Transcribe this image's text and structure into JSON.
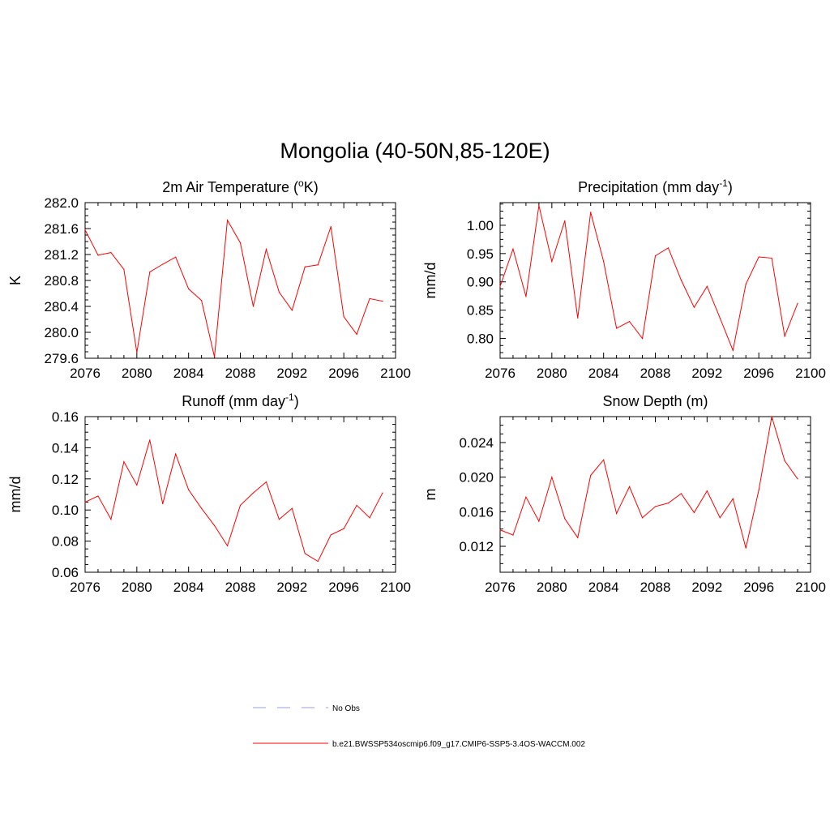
{
  "page_title": "Mongolia (40-50N,85-120E)",
  "chart_data": [
    {
      "type": "line",
      "title_parts": [
        {
          "t": "2m Air Temperature ("
        },
        {
          "t": "o",
          "sup": true
        },
        {
          "t": "K)"
        }
      ],
      "title_text": "2m Air Temperature (oK)",
      "ylabel": "K",
      "xlim": [
        2076,
        2100
      ],
      "ylim": [
        279.6,
        282.0
      ],
      "xticks": [
        2076,
        2080,
        2084,
        2088,
        2092,
        2096,
        2100
      ],
      "xtick_labels": [
        "2076",
        "2080",
        "2084",
        "2088",
        "2092",
        "2096",
        "2100"
      ],
      "yticks": [
        279.6,
        280.0,
        280.4,
        280.8,
        281.2,
        281.6,
        282.0
      ],
      "ytick_labels": [
        "279.6",
        "280.0",
        "280.4",
        "280.8",
        "281.2",
        "281.6",
        "282.0"
      ],
      "x": [
        2076,
        2077,
        2078,
        2079,
        2080,
        2081,
        2082,
        2083,
        2084,
        2085,
        2086,
        2087,
        2088,
        2089,
        2090,
        2091,
        2092,
        2093,
        2094,
        2095,
        2096,
        2097,
        2098,
        2099
      ],
      "series": [
        {
          "name": "b.e21.BWSSP534oscmip6.f09_g17.CMIP6-SSP5-3.4OS-WACCM.002",
          "values": [
            281.58,
            281.19,
            281.23,
            280.97,
            279.69,
            280.93,
            281.05,
            281.16,
            280.67,
            280.49,
            279.62,
            281.73,
            281.38,
            280.4,
            281.28,
            280.62,
            280.34,
            281.01,
            281.04,
            281.63,
            280.24,
            279.97,
            280.52,
            280.48
          ]
        }
      ]
    },
    {
      "type": "line",
      "title_parts": [
        {
          "t": "Precipitation (mm day"
        },
        {
          "t": "-1",
          "sup": true
        },
        {
          "t": ")"
        }
      ],
      "title_text": "Precipitation (mm day-1)",
      "ylabel": "mm/d",
      "xlim": [
        2076,
        2100
      ],
      "ylim": [
        0.765,
        1.04
      ],
      "xticks": [
        2076,
        2080,
        2084,
        2088,
        2092,
        2096,
        2100
      ],
      "xtick_labels": [
        "2076",
        "2080",
        "2084",
        "2088",
        "2092",
        "2096",
        "2100"
      ],
      "yticks": [
        0.8,
        0.85,
        0.9,
        0.95,
        1.0
      ],
      "ytick_labels": [
        "0.80",
        "0.85",
        "0.90",
        "0.95",
        "1.00"
      ],
      "x": [
        2076,
        2077,
        2078,
        2079,
        2080,
        2081,
        2082,
        2083,
        2084,
        2085,
        2086,
        2087,
        2088,
        2089,
        2090,
        2091,
        2092,
        2093,
        2094,
        2095,
        2096,
        2097,
        2098,
        2099
      ],
      "series": [
        {
          "name": "b.e21.BWSSP534oscmip6.f09_g17.CMIP6-SSP5-3.4OS-WACCM.002",
          "values": [
            0.892,
            0.958,
            0.874,
            1.035,
            0.936,
            1.008,
            0.836,
            1.023,
            0.936,
            0.818,
            0.83,
            0.8,
            0.946,
            0.96,
            0.903,
            0.855,
            0.892,
            0.836,
            0.779,
            0.896,
            0.944,
            0.942,
            0.804,
            0.862
          ]
        }
      ]
    },
    {
      "type": "line",
      "title_parts": [
        {
          "t": "Runoff (mm day"
        },
        {
          "t": "-1",
          "sup": true
        },
        {
          "t": ")"
        }
      ],
      "title_text": "Runoff (mm day-1)",
      "ylabel": "mm/d",
      "xlim": [
        2076,
        2100
      ],
      "ylim": [
        0.06,
        0.16
      ],
      "xticks": [
        2076,
        2080,
        2084,
        2088,
        2092,
        2096,
        2100
      ],
      "xtick_labels": [
        "2076",
        "2080",
        "2084",
        "2088",
        "2092",
        "2096",
        "2100"
      ],
      "yticks": [
        0.06,
        0.08,
        0.1,
        0.12,
        0.14,
        0.16
      ],
      "ytick_labels": [
        "0.06",
        "0.08",
        "0.10",
        "0.12",
        "0.14",
        "0.16"
      ],
      "x": [
        2076,
        2077,
        2078,
        2079,
        2080,
        2081,
        2082,
        2083,
        2084,
        2085,
        2086,
        2087,
        2088,
        2089,
        2090,
        2091,
        2092,
        2093,
        2094,
        2095,
        2096,
        2097,
        2098,
        2099
      ],
      "series": [
        {
          "name": "b.e21.BWSSP534oscmip6.f09_g17.CMIP6-SSP5-3.4OS-WACCM.002",
          "values": [
            0.105,
            0.109,
            0.094,
            0.131,
            0.116,
            0.145,
            0.104,
            0.136,
            0.113,
            0.101,
            0.09,
            0.077,
            0.103,
            0.111,
            0.118,
            0.094,
            0.101,
            0.072,
            0.067,
            0.084,
            0.088,
            0.103,
            0.095,
            0.111
          ]
        }
      ]
    },
    {
      "type": "line",
      "title_parts": [
        {
          "t": "Snow Depth (m)"
        }
      ],
      "title_text": "Snow Depth (m)",
      "ylabel": "m",
      "xlim": [
        2076,
        2100
      ],
      "ylim": [
        0.009,
        0.027
      ],
      "xticks": [
        2076,
        2080,
        2084,
        2088,
        2092,
        2096,
        2100
      ],
      "xtick_labels": [
        "2076",
        "2080",
        "2084",
        "2088",
        "2092",
        "2096",
        "2100"
      ],
      "yticks": [
        0.012,
        0.016,
        0.02,
        0.024
      ],
      "ytick_labels": [
        "0.012",
        "0.016",
        "0.020",
        "0.024"
      ],
      "x": [
        2076,
        2077,
        2078,
        2079,
        2080,
        2081,
        2082,
        2083,
        2084,
        2085,
        2086,
        2087,
        2088,
        2089,
        2090,
        2091,
        2092,
        2093,
        2094,
        2095,
        2096,
        2097,
        2098,
        2099
      ],
      "series": [
        {
          "name": "b.e21.BWSSP534oscmip6.f09_g17.CMIP6-SSP5-3.4OS-WACCM.002",
          "values": [
            0.0139,
            0.0133,
            0.0177,
            0.0149,
            0.02,
            0.0152,
            0.013,
            0.0202,
            0.022,
            0.0158,
            0.0189,
            0.0153,
            0.0166,
            0.017,
            0.0181,
            0.0159,
            0.0184,
            0.0153,
            0.0175,
            0.0118,
            0.0185,
            0.027,
            0.0219,
            0.0198
          ]
        }
      ]
    }
  ],
  "legend": {
    "items": [
      {
        "label": "No Obs",
        "color": "#aab0e6",
        "style": "dashed"
      },
      {
        "label": "b.e21.BWSSP534oscmip6.f09_g17.CMIP6-SSP5-3.4OS-WACCM.002",
        "color": "#ff0000",
        "style": "solid"
      }
    ]
  },
  "colors": {
    "series": "#ff0000",
    "obs": "#aab0e6",
    "axes": "#000000"
  }
}
